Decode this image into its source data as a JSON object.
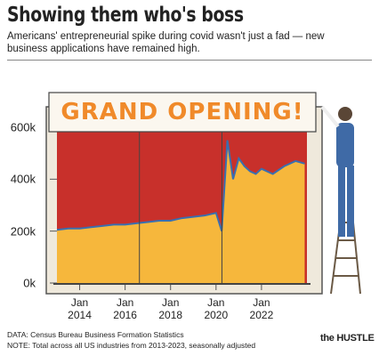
{
  "chart_data": {
    "type": "area",
    "title": "Showing them who's boss",
    "subtitle": "Americans' entrepreneurial spike during covid wasn't just a fad — new business applications have remained high.",
    "banner": "GRAND OPENING!",
    "source": "DATA: Census Bureau Business Formation Statistics",
    "note": "NOTE: Total across all US industries from 2013-2023, seasonally adjusted",
    "logo": "the HUSTLE",
    "series": [
      {
        "color": "#f6b73c",
        "x": [
          2013.0,
          2013.5,
          2014.0,
          2014.5,
          2015.0,
          2015.5,
          2016.0,
          2016.5,
          2017.0,
          2017.5,
          2018.0,
          2018.5,
          2019.0,
          2019.5,
          2020.0,
          2020.25,
          2020.5,
          2020.75,
          2021.0,
          2021.25,
          2021.5,
          2021.75,
          2022.0,
          2022.5,
          2023.0,
          2023.5,
          2023.9
        ],
        "values": [
          205000,
          210000,
          210000,
          215000,
          220000,
          225000,
          225000,
          230000,
          235000,
          240000,
          240000,
          250000,
          255000,
          260000,
          270000,
          200000,
          550000,
          400000,
          480000,
          450000,
          430000,
          420000,
          440000,
          420000,
          450000,
          470000,
          460000
        ]
      }
    ],
    "xlim": [
      2013,
      2024
    ],
    "xticks": [
      {
        "value": 2014,
        "label": "Jan 2014"
      },
      {
        "value": 2016,
        "label": "Jan 2016"
      },
      {
        "value": 2018,
        "label": "Jan 2018"
      },
      {
        "value": 2020,
        "label": "Jan 2020"
      },
      {
        "value": 2022,
        "label": "Jan 2022"
      }
    ],
    "ylim": [
      0,
      600000
    ],
    "yticks": [
      {
        "value": 0,
        "label": "0k"
      },
      {
        "value": 200000,
        "label": "200k"
      },
      {
        "value": 400000,
        "label": "400k"
      },
      {
        "value": 600000,
        "label": "600k"
      }
    ],
    "curtain_color": "#c8302b",
    "line_color": "#3a6fb0"
  }
}
